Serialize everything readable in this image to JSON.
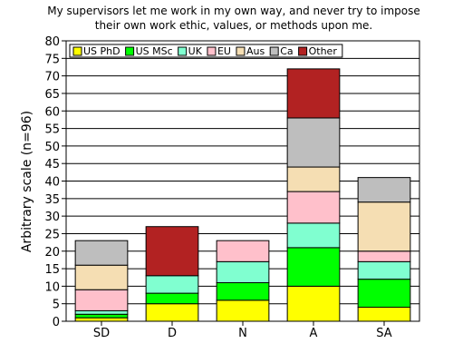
{
  "chart_data": {
    "type": "bar",
    "stacked": true,
    "title": [
      "My supervisors let me work in my own way, and never try to impose",
      "their own work ethic, values, or methods upon me."
    ],
    "xlabel": "",
    "ylabel": "Arbitrary scale (n=96)",
    "ylim": [
      0,
      80
    ],
    "yticks": [
      0,
      5,
      10,
      15,
      20,
      25,
      30,
      35,
      40,
      45,
      50,
      55,
      60,
      65,
      70,
      75,
      80
    ],
    "grid": true,
    "legend_position": "top-left",
    "categories": [
      "SD",
      "D",
      "N",
      "A",
      "SA"
    ],
    "series": [
      {
        "name": "US PhD",
        "color": "#ffff00",
        "values": [
          1,
          5,
          6,
          10,
          4
        ]
      },
      {
        "name": "US MSc",
        "color": "#00ff00",
        "values": [
          1,
          3,
          5,
          11,
          8
        ]
      },
      {
        "name": "UK",
        "color": "#80ffd0",
        "values": [
          1,
          5,
          6,
          7,
          5
        ]
      },
      {
        "name": "EU",
        "color": "#ffc0cb",
        "values": [
          6,
          0,
          6,
          9,
          3
        ]
      },
      {
        "name": "Aus",
        "color": "#f5deb3",
        "values": [
          7,
          0,
          0,
          7,
          14
        ]
      },
      {
        "name": "Ca",
        "color": "#bebebe",
        "values": [
          7,
          0,
          0,
          14,
          7
        ]
      },
      {
        "name": "Other",
        "color": "#b22222",
        "values": [
          0,
          14,
          0,
          14,
          0
        ]
      }
    ]
  }
}
